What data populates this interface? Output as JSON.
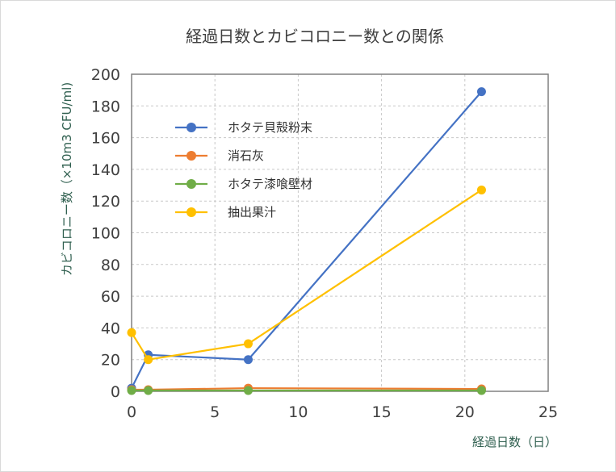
{
  "chart_data": {
    "type": "line",
    "title": "経過日数とカビコロニー数との関係",
    "xlabel": "経過日数（日）",
    "ylabel": "カビコロニー数（×10m3 CFU/ml)",
    "xlim": [
      0,
      25
    ],
    "ylim": [
      0,
      200
    ],
    "x_ticks": [
      0,
      5,
      10,
      15,
      20,
      25
    ],
    "y_ticks": [
      0,
      20,
      40,
      60,
      80,
      100,
      120,
      140,
      160,
      180,
      200
    ],
    "grid": true,
    "legend_position": "top-left",
    "series": [
      {
        "name": "ホタテ貝殻粉末",
        "color": "#4472c4",
        "x": [
          0,
          1,
          7,
          21
        ],
        "y": [
          2,
          23,
          20,
          189
        ]
      },
      {
        "name": "消石灰",
        "color": "#ed7d31",
        "x": [
          0,
          1,
          7,
          21
        ],
        "y": [
          1,
          1,
          2,
          1.5
        ]
      },
      {
        "name": "ホタテ漆喰壁材",
        "color": "#70ad47",
        "x": [
          0,
          1,
          7,
          21
        ],
        "y": [
          0.5,
          0.5,
          0.5,
          0.5
        ]
      },
      {
        "name": "抽出果汁",
        "color": "#ffc000",
        "x": [
          0,
          1,
          7,
          21
        ],
        "y": [
          37,
          20,
          30,
          127
        ]
      }
    ]
  }
}
